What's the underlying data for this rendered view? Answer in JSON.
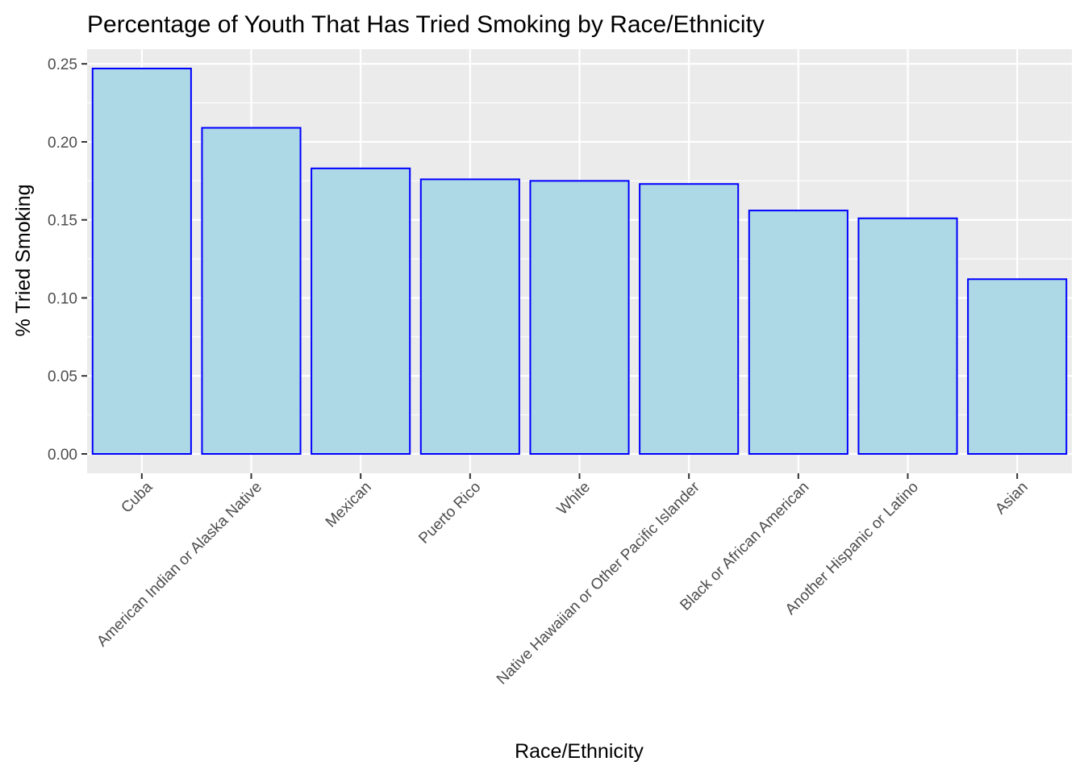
{
  "chart_data": {
    "type": "bar",
    "title": "Percentage of Youth That Has Tried Smoking by Race/Ethnicity",
    "xlabel": "Race/Ethnicity",
    "ylabel": "% Tried Smoking",
    "categories": [
      "Cuba",
      "American Indian or Alaska Native",
      "Mexican",
      "Puerto Rico",
      "White",
      "Native Hawaiian or Other Pacific Islander",
      "Black or African American",
      "Another Hispanic or Latino",
      "Asian"
    ],
    "values": [
      0.247,
      0.209,
      0.183,
      0.176,
      0.175,
      0.173,
      0.156,
      0.151,
      0.112
    ],
    "ylim": [
      -0.0124,
      0.2594
    ],
    "yticks": [
      "0.00",
      "0.05",
      "0.10",
      "0.15",
      "0.20",
      "0.25"
    ],
    "grid": true,
    "legend": "none",
    "colors": {
      "bar_fill": "#add8e6",
      "bar_stroke": "#0000ff",
      "panel_background": "#ebebeb",
      "grid": "#ffffff"
    }
  }
}
